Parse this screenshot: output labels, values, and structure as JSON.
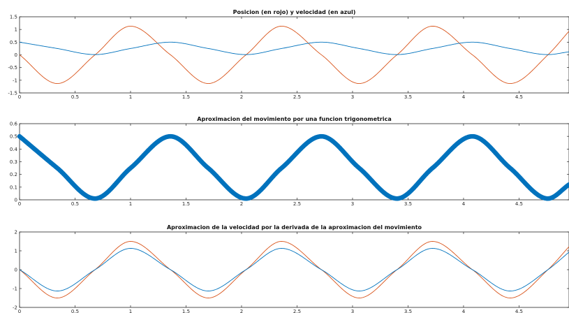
{
  "colors": {
    "red": "#d95319",
    "blue": "#0072bd",
    "axes": "#262626",
    "background": "#ffffff"
  },
  "chart_data": [
    {
      "type": "line",
      "title": "Posicion (en rojo) y velocidad (en azul)",
      "xlabel": "",
      "ylabel": "",
      "xlim": [
        0,
        4.95
      ],
      "ylim": [
        -1.5,
        1.5
      ],
      "x_ticks": [
        0,
        0.5,
        1,
        1.5,
        2,
        2.5,
        3,
        3.5,
        4,
        4.5
      ],
      "x_tick_labels": [
        "0",
        "0.5",
        "1",
        "1.5",
        "2",
        "2.5",
        "3",
        "3.5",
        "4",
        "4.5"
      ],
      "y_ticks": [
        -1.5,
        -1,
        -0.5,
        0,
        0.5,
        1,
        1.5
      ],
      "y_tick_labels": [
        "-1.5",
        "-1",
        "-0.5",
        "0",
        "0.5",
        "1",
        "1.5"
      ],
      "grid": false,
      "series": [
        {
          "color": "#d95319",
          "x": [
            0,
            0.34,
            0.68,
            1.0,
            1.36,
            1.7,
            2.04,
            2.36,
            2.72,
            3.06,
            3.4,
            3.72,
            4.08,
            4.42,
            4.76,
            4.95
          ],
          "y": [
            0,
            -1.13,
            0,
            1.13,
            0,
            -1.13,
            0,
            1.13,
            0,
            -1.13,
            0,
            1.13,
            0,
            -1.13,
            0,
            0.93
          ]
        },
        {
          "color": "#0072bd",
          "x": [
            0,
            0.34,
            0.68,
            1.0,
            1.36,
            1.7,
            2.04,
            2.36,
            2.72,
            3.06,
            3.4,
            3.72,
            4.08,
            4.42,
            4.76,
            4.95
          ],
          "y": [
            0.5,
            0.25,
            0.01,
            0.25,
            0.5,
            0.25,
            0.01,
            0.25,
            0.5,
            0.25,
            0.01,
            0.25,
            0.5,
            0.25,
            0.01,
            0.12
          ]
        }
      ]
    },
    {
      "type": "scatter",
      "title": "Aproximacion del movimiento por una funcion trigonometrica",
      "xlabel": "",
      "ylabel": "",
      "xlim": [
        0,
        4.95
      ],
      "ylim": [
        0,
        0.6
      ],
      "x_ticks": [
        0,
        0.5,
        1,
        1.5,
        2,
        2.5,
        3,
        3.5,
        4,
        4.5
      ],
      "x_tick_labels": [
        "0",
        "0.5",
        "1",
        "1.5",
        "2",
        "2.5",
        "3",
        "3.5",
        "4",
        "4.5"
      ],
      "y_ticks": [
        0,
        0.1,
        0.2,
        0.3,
        0.4,
        0.5,
        0.6
      ],
      "y_tick_labels": [
        "0",
        "0.1",
        "0.2",
        "0.3",
        "0.4",
        "0.5",
        "0.6"
      ],
      "grid": false,
      "series": [
        {
          "color": "#0072bd",
          "x": [
            0,
            0.34,
            0.68,
            1.0,
            1.36,
            1.7,
            2.04,
            2.36,
            2.72,
            3.06,
            3.4,
            3.72,
            4.08,
            4.42,
            4.76,
            4.95
          ],
          "y": [
            0.5,
            0.25,
            0.01,
            0.25,
            0.5,
            0.25,
            0.01,
            0.25,
            0.5,
            0.25,
            0.01,
            0.25,
            0.5,
            0.25,
            0.01,
            0.12
          ]
        }
      ]
    },
    {
      "type": "line",
      "title": "Aproximacion de la velocidad por la derivada de la aproximacion del movimiento",
      "xlabel": "",
      "ylabel": "",
      "xlim": [
        0,
        4.95
      ],
      "ylim": [
        -2,
        2
      ],
      "x_ticks": [
        0,
        0.5,
        1,
        1.5,
        2,
        2.5,
        3,
        3.5,
        4,
        4.5
      ],
      "x_tick_labels": [
        "0",
        "0.5",
        "1",
        "1.5",
        "2",
        "2.5",
        "3",
        "3.5",
        "4",
        "4.5"
      ],
      "y_ticks": [
        -2,
        -1,
        0,
        1,
        2
      ],
      "y_tick_labels": [
        "-2",
        "-1",
        "0",
        "1",
        "2"
      ],
      "grid": false,
      "series": [
        {
          "color": "#d95319",
          "x": [
            0,
            0.34,
            0.68,
            1.0,
            1.36,
            1.7,
            2.04,
            2.36,
            2.72,
            3.06,
            3.4,
            3.72,
            4.08,
            4.42,
            4.76,
            4.95
          ],
          "y": [
            0,
            -1.5,
            0,
            1.5,
            0,
            -1.5,
            0,
            1.5,
            0,
            -1.5,
            0,
            1.5,
            0,
            -1.5,
            0,
            1.22
          ]
        },
        {
          "color": "#0072bd",
          "x": [
            0,
            0.34,
            0.68,
            1.0,
            1.36,
            1.7,
            2.04,
            2.36,
            2.72,
            3.06,
            3.4,
            3.72,
            4.08,
            4.42,
            4.76,
            4.95
          ],
          "y": [
            0,
            -1.13,
            0,
            1.13,
            0,
            -1.13,
            0,
            1.13,
            0,
            -1.13,
            0,
            1.13,
            0,
            -1.13,
            0,
            0.93
          ]
        }
      ]
    }
  ]
}
